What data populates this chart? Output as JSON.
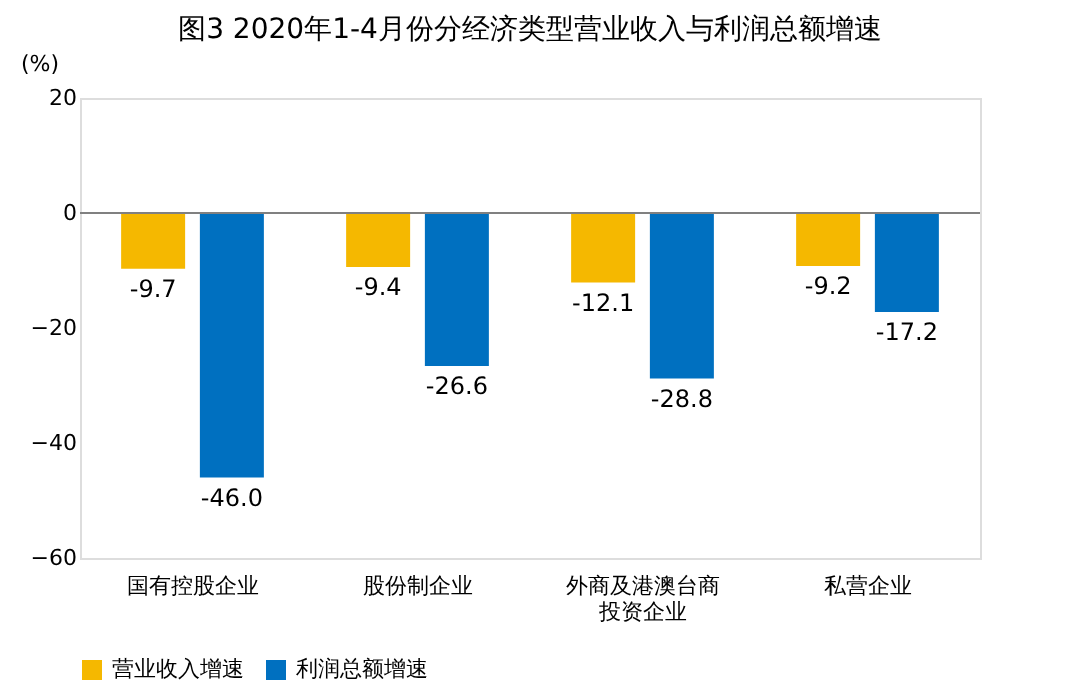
{
  "chart_data": {
    "type": "bar",
    "title": "图3 2020年1-4月份分经济类型营业收入与利润总额增速",
    "ylabel": "(%)",
    "categories": [
      "国有控股企业",
      "股份制企业",
      "外商及港澳台商投资企业",
      "私营企业"
    ],
    "series": [
      {
        "name": "营业收入增速",
        "color": "#f5b800",
        "values": [
          -9.7,
          -9.4,
          -12.1,
          -9.2
        ],
        "value_labels": [
          "-9.7",
          "-9.4",
          "-12.1",
          "-9.2"
        ]
      },
      {
        "name": "利润总额增速",
        "color": "#0070c0",
        "values": [
          -46.0,
          -26.6,
          -28.8,
          -17.2
        ],
        "value_labels": [
          "-46.0",
          "-26.6",
          "-28.8",
          "-17.2"
        ]
      }
    ],
    "ylim": [
      -60,
      20
    ],
    "yticks": [
      -60,
      -40,
      -20,
      0,
      20
    ],
    "grid": false,
    "legend": "bottom",
    "ref_lines": [
      {
        "axis": "y",
        "value": 0,
        "label": null,
        "color": "#808080"
      }
    ]
  }
}
